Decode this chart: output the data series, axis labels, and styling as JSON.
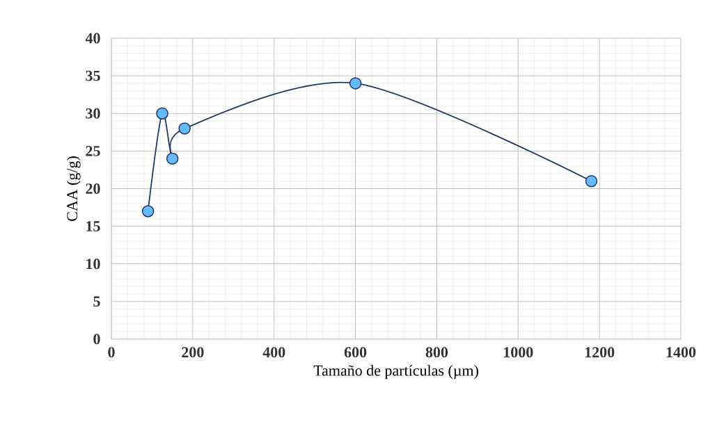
{
  "chart_data": {
    "type": "line",
    "xlabel": "Tamaño de partículas (µm)",
    "ylabel": "CAA (g/g)",
    "x": [
      90,
      125,
      150,
      180,
      600,
      1180
    ],
    "series": [
      {
        "color": "#1f3864",
        "values": [
          17,
          30,
          24,
          28,
          34,
          21
        ]
      }
    ],
    "xlim": [
      0,
      1400
    ],
    "xticks": [
      0,
      200,
      400,
      600,
      800,
      1000,
      1200,
      1400
    ],
    "ylim": [
      0,
      40
    ],
    "yticks": [
      0,
      5,
      10,
      15,
      20,
      25,
      30,
      35,
      40
    ],
    "grid": true,
    "marker": "circle",
    "line_style": "solid"
  }
}
